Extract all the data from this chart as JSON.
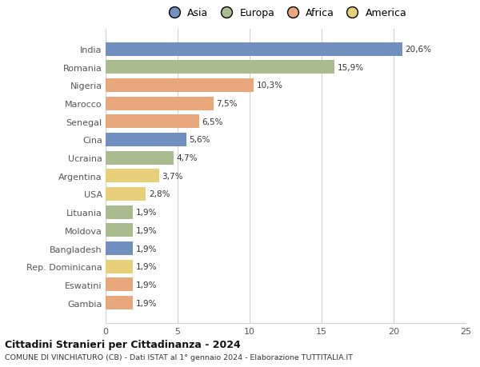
{
  "categories": [
    "India",
    "Romania",
    "Nigeria",
    "Marocco",
    "Senegal",
    "Cina",
    "Ucraina",
    "Argentina",
    "USA",
    "Lituania",
    "Moldova",
    "Bangladesh",
    "Rep. Dominicana",
    "Eswatini",
    "Gambia"
  ],
  "values": [
    20.6,
    15.9,
    10.3,
    7.5,
    6.5,
    5.6,
    4.7,
    3.7,
    2.8,
    1.9,
    1.9,
    1.9,
    1.9,
    1.9,
    1.9
  ],
  "labels": [
    "20,6%",
    "15,9%",
    "10,3%",
    "7,5%",
    "6,5%",
    "5,6%",
    "4,7%",
    "3,7%",
    "2,8%",
    "1,9%",
    "1,9%",
    "1,9%",
    "1,9%",
    "1,9%",
    "1,9%"
  ],
  "continents": [
    "Asia",
    "Europa",
    "Africa",
    "Africa",
    "Africa",
    "Asia",
    "Europa",
    "America",
    "America",
    "Europa",
    "Europa",
    "Asia",
    "America",
    "Africa",
    "Africa"
  ],
  "colors": {
    "Asia": "#7090bf",
    "Europa": "#a8bc8f",
    "Africa": "#e8a87c",
    "America": "#e8d07a"
  },
  "title1": "Cittadini Stranieri per Cittadinanza - 2024",
  "title2": "COMUNE DI VINCHIATURO (CB) - Dati ISTAT al 1° gennaio 2024 - Elaborazione TUTTITALIA.IT",
  "xlim": [
    0,
    25
  ],
  "xticks": [
    0,
    5,
    10,
    15,
    20,
    25
  ],
  "background_color": "#ffffff",
  "grid_color": "#d0d0d0",
  "bar_height": 0.75,
  "legend_order": [
    "Asia",
    "Europa",
    "Africa",
    "America"
  ]
}
